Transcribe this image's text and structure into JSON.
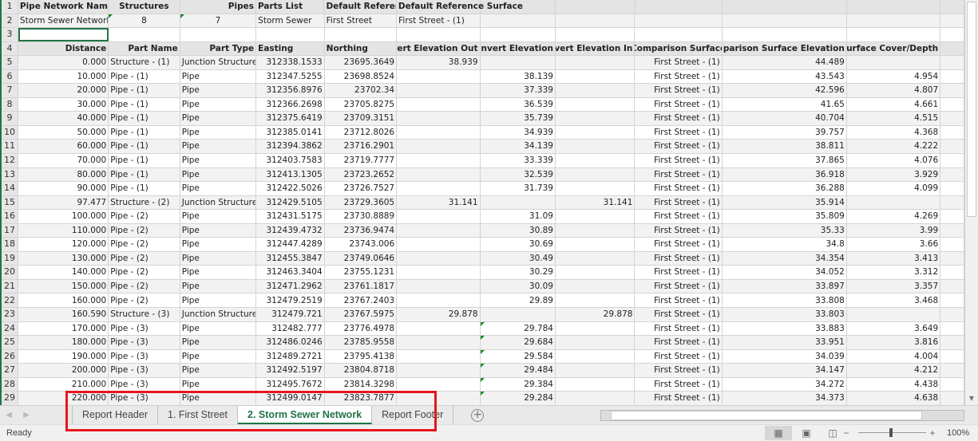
{
  "row1": [
    "Pipe Network Name",
    "Structures",
    "Pipes",
    "Parts List",
    "Default Reference",
    "Default Reference Surface"
  ],
  "row2": [
    "Storm Sewer Network",
    "8",
    "7",
    "Storm Sewer",
    "First Street",
    "First Street - (1)"
  ],
  "headers": [
    "Distance",
    "Part Name",
    "Part Type",
    "Easting",
    "Northing",
    "Invert Elevation Out",
    "Invert Elevation",
    "Invert Elevation In",
    "Comparison Surface",
    "Comparison Surface Elevation",
    "Comparison Surface Cover/Depth"
  ],
  "rows": [
    [
      "0.000",
      "Structure - (1)",
      "Junction Structure",
      "312338.1533",
      "23695.3649",
      "38.939",
      "",
      "",
      "First Street - (1)",
      "44.489",
      ""
    ],
    [
      "10.000",
      "Pipe - (1)",
      "Pipe",
      "312347.5255",
      "23698.8524",
      "",
      "38.139",
      "",
      "First Street - (1)",
      "43.543",
      "4.954"
    ],
    [
      "20.000",
      "Pipe - (1)",
      "Pipe",
      "312356.8976",
      "23702.34",
      "",
      "37.339",
      "",
      "First Street - (1)",
      "42.596",
      "4.807"
    ],
    [
      "30.000",
      "Pipe - (1)",
      "Pipe",
      "312366.2698",
      "23705.8275",
      "",
      "36.539",
      "",
      "First Street - (1)",
      "41.65",
      "4.661"
    ],
    [
      "40.000",
      "Pipe - (1)",
      "Pipe",
      "312375.6419",
      "23709.3151",
      "",
      "35.739",
      "",
      "First Street - (1)",
      "40.704",
      "4.515"
    ],
    [
      "50.000",
      "Pipe - (1)",
      "Pipe",
      "312385.0141",
      "23712.8026",
      "",
      "34.939",
      "",
      "First Street - (1)",
      "39.757",
      "4.368"
    ],
    [
      "60.000",
      "Pipe - (1)",
      "Pipe",
      "312394.3862",
      "23716.2901",
      "",
      "34.139",
      "",
      "First Street - (1)",
      "38.811",
      "4.222"
    ],
    [
      "70.000",
      "Pipe - (1)",
      "Pipe",
      "312403.7583",
      "23719.7777",
      "",
      "33.339",
      "",
      "First Street - (1)",
      "37.865",
      "4.076"
    ],
    [
      "80.000",
      "Pipe - (1)",
      "Pipe",
      "312413.1305",
      "23723.2652",
      "",
      "32.539",
      "",
      "First Street - (1)",
      "36.918",
      "3.929"
    ],
    [
      "90.000",
      "Pipe - (1)",
      "Pipe",
      "312422.5026",
      "23726.7527",
      "",
      "31.739",
      "",
      "First Street - (1)",
      "36.288",
      "4.099"
    ],
    [
      "97.477",
      "Structure - (2)",
      "Junction Structure",
      "312429.5105",
      "23729.3605",
      "31.141",
      "",
      "31.141",
      "First Street - (1)",
      "35.914",
      ""
    ],
    [
      "100.000",
      "Pipe - (2)",
      "Pipe",
      "312431.5175",
      "23730.8889",
      "",
      "31.09",
      "",
      "First Street - (1)",
      "35.809",
      "4.269"
    ],
    [
      "110.000",
      "Pipe - (2)",
      "Pipe",
      "312439.4732",
      "23736.9474",
      "",
      "30.89",
      "",
      "First Street - (1)",
      "35.33",
      "3.99"
    ],
    [
      "120.000",
      "Pipe - (2)",
      "Pipe",
      "312447.4289",
      "23743.006",
      "",
      "30.69",
      "",
      "First Street - (1)",
      "34.8",
      "3.66"
    ],
    [
      "130.000",
      "Pipe - (2)",
      "Pipe",
      "312455.3847",
      "23749.0646",
      "",
      "30.49",
      "",
      "First Street - (1)",
      "34.354",
      "3.413"
    ],
    [
      "140.000",
      "Pipe - (2)",
      "Pipe",
      "312463.3404",
      "23755.1231",
      "",
      "30.29",
      "",
      "First Street - (1)",
      "34.052",
      "3.312"
    ],
    [
      "150.000",
      "Pipe - (2)",
      "Pipe",
      "312471.2962",
      "23761.1817",
      "",
      "30.09",
      "",
      "First Street - (1)",
      "33.897",
      "3.357"
    ],
    [
      "160.000",
      "Pipe - (2)",
      "Pipe",
      "312479.2519",
      "23767.2403",
      "",
      "29.89",
      "",
      "First Street - (1)",
      "33.808",
      "3.468"
    ],
    [
      "160.590",
      "Structure - (3)",
      "Junction Structure",
      "312479.721",
      "23767.5975",
      "29.878",
      "",
      "29.878",
      "First Street - (1)",
      "33.803",
      ""
    ],
    [
      "170.000",
      "Pipe - (3)",
      "Pipe",
      "312482.777",
      "23776.4978",
      "",
      "29.784",
      "",
      "First Street - (1)",
      "33.883",
      "3.649"
    ],
    [
      "180.000",
      "Pipe - (3)",
      "Pipe",
      "312486.0246",
      "23785.9558",
      "",
      "29.684",
      "",
      "First Street - (1)",
      "33.951",
      "3.816"
    ],
    [
      "190.000",
      "Pipe - (3)",
      "Pipe",
      "312489.2721",
      "23795.4138",
      "",
      "29.584",
      "",
      "First Street - (1)",
      "34.039",
      "4.004"
    ],
    [
      "200.000",
      "Pipe - (3)",
      "Pipe",
      "312492.5197",
      "23804.8718",
      "",
      "29.484",
      "",
      "First Street - (1)",
      "34.147",
      "4.212"
    ],
    [
      "210.000",
      "Pipe - (3)",
      "Pipe",
      "312495.7672",
      "23814.3298",
      "",
      "29.384",
      "",
      "First Street - (1)",
      "34.272",
      "4.438"
    ],
    [
      "220.000",
      "Pipe - (3)",
      "Pipe",
      "312499.0147",
      "23823.7877",
      "",
      "29.284",
      "",
      "First Street - (1)",
      "34.373",
      "4.638"
    ]
  ],
  "tabs": [
    {
      "label": "Report Header"
    },
    {
      "label": "1. First Street"
    },
    {
      "label": "2. Storm Sewer Network",
      "active": true
    },
    {
      "label": "Report Footer"
    }
  ],
  "status": {
    "ready": "Ready",
    "zoom": "100%",
    "zoom_level_percent": 100
  },
  "colors": {
    "accent": "#217346",
    "annotation": "#e8141c"
  },
  "icons": {
    "add_sheet": "plus-circle-icon",
    "normal_view": "grid-icon",
    "page_layout": "page-layout-icon",
    "page_break": "page-break-icon"
  }
}
